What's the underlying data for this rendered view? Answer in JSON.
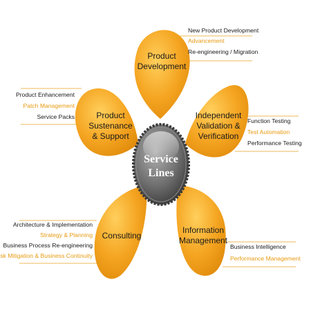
{
  "center": {
    "line1": "Service",
    "line2": "Lines"
  },
  "colors": {
    "petal": "#f5a623",
    "accent": "#e89a10",
    "text": "#1a1a1a",
    "hub": "#6e6e6e"
  },
  "petals": [
    {
      "id": "product-development",
      "label": [
        "Product",
        "Development"
      ],
      "items": [
        {
          "text": "New Product Development",
          "accent": false
        },
        {
          "text": "Advancement",
          "accent": true
        },
        {
          "text": "Re-engineering / Migration",
          "accent": false
        }
      ]
    },
    {
      "id": "independent-validation",
      "label": [
        "Independent",
        "Validation &",
        "Verification"
      ],
      "items": [
        {
          "text": "Function Testing",
          "accent": false
        },
        {
          "text": "Test Automation",
          "accent": true
        },
        {
          "text": "Performance Testing",
          "accent": false
        }
      ]
    },
    {
      "id": "information-management",
      "label": [
        "Information",
        "Management"
      ],
      "items": [
        {
          "text": "Business Intelligence",
          "accent": false
        },
        {
          "text": "Performance Management",
          "accent": true
        }
      ]
    },
    {
      "id": "consulting",
      "label": [
        "Consulting"
      ],
      "items": [
        {
          "text": "Architecture & Implementation",
          "accent": false
        },
        {
          "text": "Strategy & Planning",
          "accent": true
        },
        {
          "text": "Business Process Re-engineering",
          "accent": false
        },
        {
          "text": "Risk Mitigation & Business Continuity",
          "accent": true
        }
      ]
    },
    {
      "id": "product-sustenance",
      "label": [
        "Product",
        "Sustenance",
        "& Support"
      ],
      "items": [
        {
          "text": "Product Enhancement",
          "accent": false
        },
        {
          "text": "Patch Management",
          "accent": true
        },
        {
          "text": "Service Packs",
          "accent": false
        }
      ]
    }
  ]
}
